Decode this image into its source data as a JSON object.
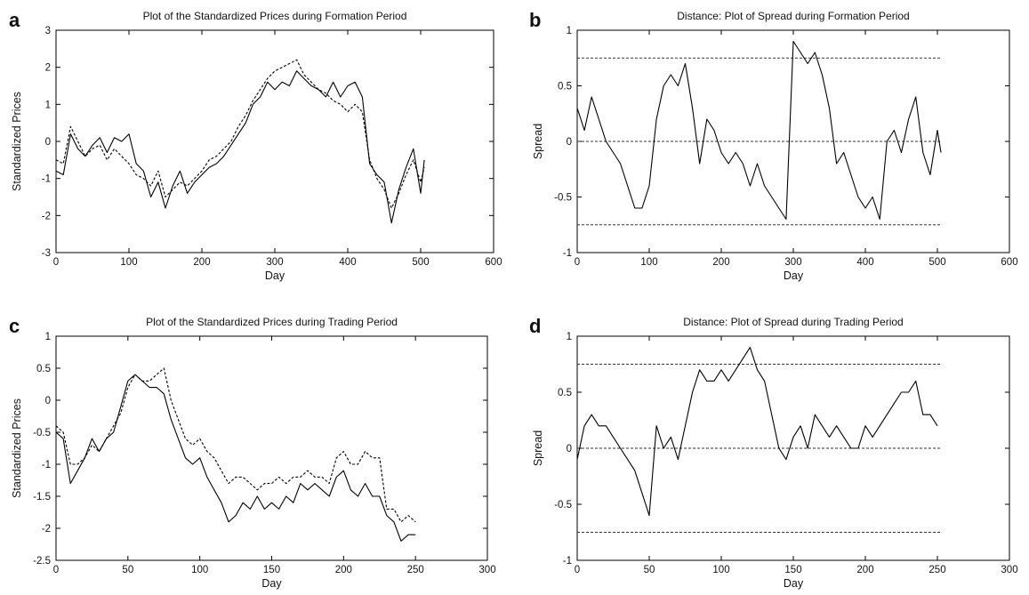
{
  "chart_data": [
    {
      "panel": "a",
      "type": "line",
      "title": "Plot of the Standardized Prices during Formation Period",
      "xlabel": "Day",
      "ylabel": "Standardized Prices",
      "xlim": [
        0,
        600
      ],
      "ylim": [
        -3,
        3
      ],
      "xticks": [
        "0",
        "100",
        "200",
        "300",
        "400",
        "500",
        "600"
      ],
      "yticks": [
        "-3",
        "-2",
        "-1",
        "0",
        "1",
        "2",
        "3"
      ],
      "series": [
        {
          "style": "solid",
          "x": [
            0,
            10,
            20,
            30,
            40,
            50,
            60,
            70,
            80,
            90,
            100,
            110,
            120,
            130,
            140,
            150,
            160,
            170,
            180,
            190,
            200,
            210,
            220,
            230,
            240,
            250,
            260,
            270,
            280,
            290,
            300,
            310,
            320,
            330,
            340,
            350,
            360,
            370,
            380,
            390,
            400,
            410,
            420,
            430,
            440,
            450,
            460,
            470,
            480,
            490,
            500,
            505
          ],
          "y": [
            -0.8,
            -0.9,
            0.2,
            -0.2,
            -0.4,
            -0.1,
            0.1,
            -0.3,
            0.1,
            0.0,
            0.2,
            -0.6,
            -0.8,
            -1.5,
            -1.1,
            -1.8,
            -1.2,
            -0.8,
            -1.4,
            -1.1,
            -0.9,
            -0.7,
            -0.6,
            -0.4,
            -0.1,
            0.2,
            0.5,
            1.0,
            1.2,
            1.6,
            1.4,
            1.6,
            1.5,
            1.9,
            1.7,
            1.5,
            1.4,
            1.2,
            1.6,
            1.2,
            1.5,
            1.6,
            1.2,
            -0.6,
            -0.9,
            -1.1,
            -2.2,
            -1.3,
            -0.7,
            -0.2,
            -1.4,
            -0.5
          ]
        },
        {
          "style": "dashed",
          "x": [
            0,
            10,
            20,
            30,
            40,
            50,
            60,
            70,
            80,
            90,
            100,
            110,
            120,
            130,
            140,
            150,
            160,
            170,
            180,
            190,
            200,
            210,
            220,
            230,
            240,
            250,
            260,
            270,
            280,
            290,
            300,
            310,
            320,
            330,
            340,
            350,
            360,
            370,
            380,
            390,
            400,
            410,
            420,
            430,
            440,
            450,
            460,
            470,
            480,
            490,
            500,
            505
          ],
          "y": [
            -0.5,
            -0.6,
            0.4,
            0.0,
            -0.4,
            -0.2,
            -0.1,
            -0.5,
            -0.2,
            -0.4,
            -0.6,
            -0.9,
            -1.0,
            -1.2,
            -0.8,
            -1.5,
            -1.3,
            -1.1,
            -1.2,
            -1.0,
            -0.8,
            -0.5,
            -0.4,
            -0.2,
            0.0,
            0.4,
            0.7,
            1.1,
            1.4,
            1.7,
            1.9,
            2.0,
            2.1,
            2.2,
            1.8,
            1.6,
            1.4,
            1.3,
            1.1,
            1.0,
            0.8,
            1.0,
            0.8,
            -0.5,
            -1.0,
            -1.3,
            -1.8,
            -1.4,
            -0.9,
            -0.5,
            -1.1,
            -0.7
          ]
        }
      ],
      "hlines": []
    },
    {
      "panel": "b",
      "type": "line",
      "title": "Distance: Plot of Spread during Formation Period",
      "xlabel": "Day",
      "ylabel": "Spread",
      "xlim": [
        0,
        600
      ],
      "ylim": [
        -1,
        1
      ],
      "xticks": [
        "0",
        "100",
        "200",
        "300",
        "400",
        "500",
        "600"
      ],
      "yticks": [
        "-1",
        "-0.5",
        "0",
        "0.5",
        "1"
      ],
      "series": [
        {
          "style": "solid",
          "x": [
            0,
            10,
            20,
            30,
            40,
            50,
            60,
            70,
            80,
            90,
            100,
            110,
            120,
            130,
            140,
            150,
            160,
            170,
            180,
            190,
            200,
            210,
            220,
            230,
            240,
            250,
            260,
            270,
            280,
            290,
            300,
            310,
            320,
            330,
            340,
            350,
            360,
            370,
            380,
            390,
            400,
            410,
            420,
            430,
            440,
            450,
            460,
            470,
            480,
            490,
            500,
            505
          ],
          "y": [
            0.3,
            0.1,
            0.4,
            0.2,
            0.0,
            -0.1,
            -0.2,
            -0.4,
            -0.6,
            -0.6,
            -0.4,
            0.2,
            0.5,
            0.6,
            0.5,
            0.7,
            0.3,
            -0.2,
            0.2,
            0.1,
            -0.1,
            -0.2,
            -0.1,
            -0.2,
            -0.4,
            -0.2,
            -0.4,
            -0.5,
            -0.6,
            -0.7,
            0.9,
            0.8,
            0.7,
            0.8,
            0.6,
            0.3,
            -0.2,
            -0.1,
            -0.3,
            -0.5,
            -0.6,
            -0.5,
            -0.7,
            0.0,
            0.1,
            -0.1,
            0.2,
            0.4,
            -0.1,
            -0.3,
            0.1,
            -0.1
          ]
        }
      ],
      "hlines": [
        {
          "y": 0.75,
          "style": "dashed"
        },
        {
          "y": 0,
          "style": "dashed"
        },
        {
          "y": -0.75,
          "style": "dashed"
        }
      ],
      "hline_xrange": [
        0,
        505
      ]
    },
    {
      "panel": "c",
      "type": "line",
      "title": "Plot of the Standardized Prices during Trading Period",
      "xlabel": "Day",
      "ylabel": "Standardized Prices",
      "xlim": [
        0,
        300
      ],
      "ylim": [
        -2.5,
        1
      ],
      "xticks": [
        "0",
        "50",
        "100",
        "150",
        "200",
        "250",
        "300"
      ],
      "yticks": [
        "-2.5",
        "-2",
        "-1.5",
        "-1",
        "-0.5",
        "0",
        "0.5",
        "1"
      ],
      "series": [
        {
          "style": "solid",
          "x": [
            0,
            5,
            10,
            15,
            20,
            25,
            30,
            35,
            40,
            45,
            50,
            55,
            60,
            65,
            70,
            75,
            80,
            85,
            90,
            95,
            100,
            105,
            110,
            115,
            120,
            125,
            130,
            135,
            140,
            145,
            150,
            155,
            160,
            165,
            170,
            175,
            180,
            185,
            190,
            195,
            200,
            205,
            210,
            215,
            220,
            225,
            230,
            235,
            240,
            245,
            250
          ],
          "y": [
            -0.5,
            -0.6,
            -1.3,
            -1.1,
            -0.9,
            -0.6,
            -0.8,
            -0.6,
            -0.5,
            -0.1,
            0.3,
            0.4,
            0.3,
            0.2,
            0.2,
            0.1,
            -0.3,
            -0.6,
            -0.9,
            -1.0,
            -0.9,
            -1.2,
            -1.4,
            -1.6,
            -1.9,
            -1.8,
            -1.6,
            -1.7,
            -1.5,
            -1.7,
            -1.6,
            -1.7,
            -1.5,
            -1.6,
            -1.3,
            -1.4,
            -1.3,
            -1.4,
            -1.5,
            -1.2,
            -1.1,
            -1.4,
            -1.5,
            -1.3,
            -1.5,
            -1.5,
            -1.8,
            -1.9,
            -2.2,
            -2.1,
            -2.1
          ]
        },
        {
          "style": "dashed",
          "x": [
            0,
            5,
            10,
            15,
            20,
            25,
            30,
            35,
            40,
            45,
            50,
            55,
            60,
            65,
            70,
            75,
            80,
            85,
            90,
            95,
            100,
            105,
            110,
            115,
            120,
            125,
            130,
            135,
            140,
            145,
            150,
            155,
            160,
            165,
            170,
            175,
            180,
            185,
            190,
            195,
            200,
            205,
            210,
            215,
            220,
            225,
            230,
            235,
            240,
            245,
            250
          ],
          "y": [
            -0.4,
            -0.5,
            -1.0,
            -1.0,
            -0.9,
            -0.7,
            -0.8,
            -0.6,
            -0.4,
            -0.2,
            0.2,
            0.4,
            0.3,
            0.3,
            0.4,
            0.5,
            0.0,
            -0.3,
            -0.6,
            -0.7,
            -0.6,
            -0.8,
            -0.9,
            -1.1,
            -1.3,
            -1.2,
            -1.2,
            -1.3,
            -1.4,
            -1.3,
            -1.3,
            -1.2,
            -1.3,
            -1.2,
            -1.2,
            -1.1,
            -1.2,
            -1.2,
            -1.3,
            -0.9,
            -0.8,
            -1.0,
            -1.0,
            -0.8,
            -0.9,
            -0.9,
            -1.7,
            -1.7,
            -1.9,
            -1.8,
            -1.9
          ]
        }
      ],
      "hlines": []
    },
    {
      "panel": "d",
      "type": "line",
      "title": "Distance: Plot of Spread during Trading Period",
      "xlabel": "Day",
      "ylabel": "Spread",
      "xlim": [
        0,
        300
      ],
      "ylim": [
        -1,
        1
      ],
      "xticks": [
        "0",
        "50",
        "100",
        "150",
        "200",
        "250",
        "300"
      ],
      "yticks": [
        "-1",
        "-0.5",
        "0",
        "0.5",
        "1"
      ],
      "series": [
        {
          "style": "solid",
          "x": [
            0,
            5,
            10,
            15,
            20,
            25,
            30,
            35,
            40,
            45,
            50,
            55,
            60,
            65,
            70,
            75,
            80,
            85,
            90,
            95,
            100,
            105,
            110,
            115,
            120,
            125,
            130,
            135,
            140,
            145,
            150,
            155,
            160,
            165,
            170,
            175,
            180,
            185,
            190,
            195,
            200,
            205,
            210,
            215,
            220,
            225,
            230,
            235,
            240,
            245,
            250
          ],
          "y": [
            -0.1,
            0.2,
            0.3,
            0.2,
            0.2,
            0.1,
            0.0,
            -0.1,
            -0.2,
            -0.4,
            -0.6,
            0.2,
            0.0,
            0.1,
            -0.1,
            0.2,
            0.5,
            0.7,
            0.6,
            0.6,
            0.7,
            0.6,
            0.7,
            0.8,
            0.9,
            0.7,
            0.6,
            0.3,
            0.0,
            -0.1,
            0.1,
            0.2,
            0.0,
            0.3,
            0.2,
            0.1,
            0.2,
            0.1,
            0.0,
            0.0,
            0.2,
            0.1,
            0.2,
            0.3,
            0.4,
            0.5,
            0.5,
            0.6,
            0.3,
            0.3,
            0.2
          ]
        }
      ],
      "hlines": [
        {
          "y": 0.75,
          "style": "dashed"
        },
        {
          "y": 0,
          "style": "dashed"
        },
        {
          "y": -0.75,
          "style": "dashed"
        }
      ],
      "hline_xrange": [
        0,
        252
      ]
    }
  ]
}
